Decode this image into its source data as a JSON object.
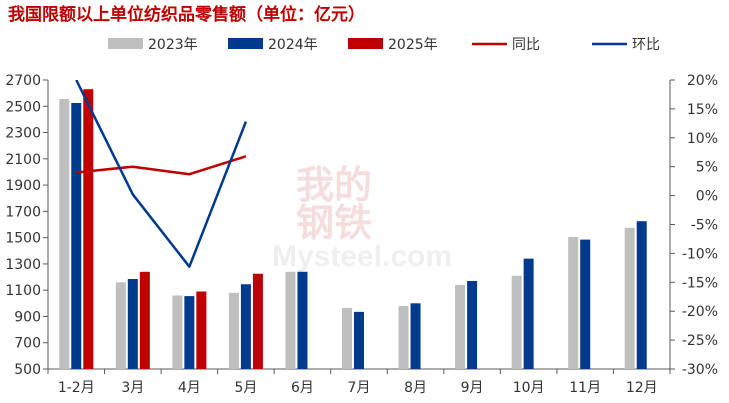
{
  "chart_data": {
    "type": "bar",
    "title": "我国限额以上单位纺织品零售额（单位：亿元）",
    "categories": [
      "1-2月",
      "3月",
      "4月",
      "5月",
      "6月",
      "7月",
      "8月",
      "9月",
      "10月",
      "11月",
      "12月"
    ],
    "series": [
      {
        "name": "2023年",
        "type": "bar",
        "axis": "left",
        "color": "#bfbfbf",
        "values": [
          2555,
          1160,
          1060,
          1080,
          1240,
          965,
          980,
          1140,
          1210,
          1505,
          1575
        ]
      },
      {
        "name": "2024年",
        "type": "bar",
        "axis": "left",
        "color": "#003a8c",
        "values": [
          2525,
          1185,
          1055,
          1145,
          1240,
          935,
          1000,
          1170,
          1340,
          1485,
          1625
        ]
      },
      {
        "name": "2025年",
        "type": "bar",
        "axis": "left",
        "color": "#c00000",
        "values": [
          2630,
          1240,
          1090,
          1225,
          null,
          null,
          null,
          null,
          null,
          null,
          null
        ]
      },
      {
        "name": "同比",
        "type": "line",
        "axis": "right",
        "color": "#c00000",
        "values": [
          4.0,
          5.0,
          3.7,
          6.8,
          null,
          null,
          null,
          null,
          null,
          null,
          null
        ]
      },
      {
        "name": "环比",
        "type": "line",
        "axis": "right",
        "color": "#003a8c",
        "values": [
          20,
          0.2,
          -12.3,
          12.8,
          null,
          null,
          null,
          null,
          null,
          null,
          null
        ]
      }
    ],
    "y_left": {
      "min": 500,
      "max": 2700,
      "ticks": [
        500,
        700,
        900,
        1100,
        1300,
        1500,
        1700,
        1900,
        2100,
        2300,
        2500,
        2700
      ]
    },
    "y_right": {
      "min": -30,
      "max": 20,
      "ticks": [
        -30,
        -25,
        -20,
        -15,
        -10,
        -5,
        0,
        5,
        10,
        15,
        20
      ],
      "unit": "%"
    },
    "legend_position": "top",
    "watermark": [
      "我的",
      "钢铁",
      "Mysteel.com"
    ]
  }
}
